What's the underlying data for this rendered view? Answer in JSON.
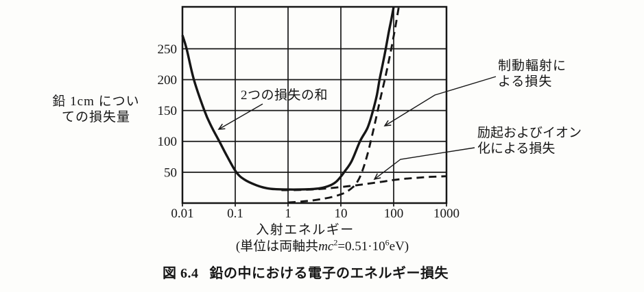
{
  "figure": {
    "y_axis_title_line1": "鉛 1cm につい",
    "y_axis_title_line2": "ての損失量",
    "x_axis_title": "入射エネルギー",
    "units_prefix": "(単位は両軸共",
    "units_mc": "mc",
    "units_mc_exp": "2",
    "units_value": "=0.51·10",
    "units_value_exp": "6",
    "units_suffix": "eV)",
    "caption_number": "図 6.4",
    "caption_text": "鉛の中における電子のエネルギー損失"
  },
  "chart_data": {
    "type": "line",
    "title": "鉛の中における電子のエネルギー損失",
    "xlabel": "入射エネルギー",
    "ylabel": "鉛1cmについての損失量",
    "units_note": "単位は両軸共 mc²=0.51·10⁶eV",
    "x_scale": "log",
    "xlim": [
      0.01,
      1000
    ],
    "ylim": [
      0,
      318
    ],
    "x_ticks": [
      0.01,
      0.1,
      1,
      10,
      100,
      1000
    ],
    "x_tick_labels": [
      "0.01",
      "0.1",
      "1",
      "10",
      "100",
      "1000"
    ],
    "y_ticks": [
      50,
      100,
      150,
      200,
      250
    ],
    "grid": true,
    "legend": "none",
    "ink_color": "#161616",
    "background_color": "#fdfdfb",
    "series": [
      {
        "id": "sum",
        "name": "2つの損失の和",
        "style": "solid",
        "points": [
          [
            0.01,
            272
          ],
          [
            0.012,
            250
          ],
          [
            0.0165,
            200
          ],
          [
            0.026,
            150
          ],
          [
            0.035,
            125
          ],
          [
            0.05,
            100
          ],
          [
            0.07,
            76
          ],
          [
            0.105,
            50
          ],
          [
            0.15,
            38
          ],
          [
            0.25,
            29
          ],
          [
            0.4,
            24
          ],
          [
            0.6,
            22.5
          ],
          [
            1,
            22
          ],
          [
            1.6,
            22
          ],
          [
            2.5,
            22.5
          ],
          [
            4,
            24
          ],
          [
            6,
            28
          ],
          [
            8,
            34
          ],
          [
            10,
            43
          ],
          [
            11.5,
            50
          ],
          [
            16,
            68
          ],
          [
            23,
            100
          ],
          [
            32,
            122
          ],
          [
            40,
            148
          ],
          [
            48,
            175
          ],
          [
            54,
            200
          ],
          [
            62,
            225
          ],
          [
            70,
            248
          ],
          [
            80,
            275
          ],
          [
            90,
            297
          ],
          [
            100,
            318
          ]
        ]
      },
      {
        "id": "bremsstrahlung",
        "name": "制動輻射による損失",
        "style": "dashed",
        "points": [
          [
            1,
            1
          ],
          [
            1.8,
            2.5
          ],
          [
            3,
            4.5
          ],
          [
            5,
            7.5
          ],
          [
            8,
            11.5
          ],
          [
            12,
            17
          ],
          [
            17,
            26
          ],
          [
            21,
            36
          ],
          [
            25,
            50
          ],
          [
            31,
            75
          ],
          [
            38,
            105
          ],
          [
            47,
            140
          ],
          [
            58,
            175
          ],
          [
            72,
            210
          ],
          [
            90,
            250
          ],
          [
            110,
            290
          ],
          [
            125,
            318
          ]
        ]
      },
      {
        "id": "excitation-ionization",
        "name": "励起およびイオン化による損失",
        "style": "dashed",
        "points": [
          [
            0.75,
            21
          ],
          [
            1.2,
            21
          ],
          [
            2,
            21.5
          ],
          [
            3.5,
            22.5
          ],
          [
            6,
            24
          ],
          [
            10,
            26
          ],
          [
            16,
            28
          ],
          [
            25,
            30
          ],
          [
            40,
            32.5
          ],
          [
            65,
            35
          ],
          [
            100,
            37.5
          ],
          [
            160,
            39.5
          ],
          [
            280,
            41
          ],
          [
            500,
            42.5
          ],
          [
            1000,
            43.5
          ]
        ]
      }
    ],
    "annotations": [
      {
        "id": "sum",
        "text": "2つの損失の和"
      },
      {
        "id": "bremsstrahlung",
        "line1": "制動輻射に",
        "line2": "よる損失"
      },
      {
        "id": "excitation-ionization",
        "line1": "励起およびイオン",
        "line2": "化による損失"
      }
    ]
  }
}
